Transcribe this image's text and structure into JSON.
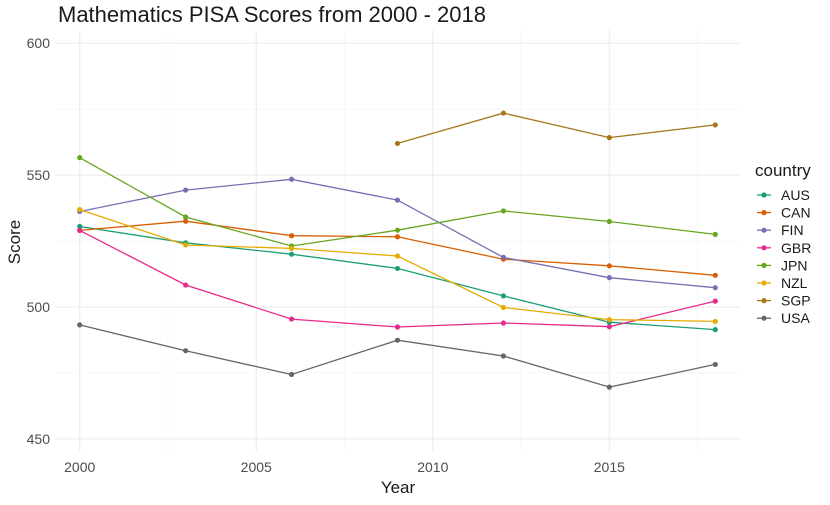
{
  "chart_data": {
    "type": "line",
    "title": "Mathematics PISA Scores from 2000 - 2018",
    "xlabel": "Year",
    "ylabel": "Score",
    "xlim": [
      1999.3,
      2018.7
    ],
    "ylim": [
      445,
      605
    ],
    "x_ticks": [
      2000,
      2005,
      2010,
      2015
    ],
    "y_ticks": [
      450,
      500,
      550,
      600
    ],
    "grid": true,
    "legend": {
      "title": "country",
      "position": "right"
    },
    "series": [
      {
        "name": "AUS",
        "color": "#1b9e77",
        "points": [
          [
            2000,
            530.5
          ],
          [
            2003,
            524.3
          ],
          [
            2006,
            520.0
          ],
          [
            2009,
            514.6
          ],
          [
            2012,
            504.2
          ],
          [
            2015,
            494.2
          ],
          [
            2018,
            491.4
          ]
        ]
      },
      {
        "name": "CAN",
        "color": "#d95f02",
        "points": [
          [
            2000,
            529.0
          ],
          [
            2003,
            532.5
          ],
          [
            2006,
            527.0
          ],
          [
            2009,
            526.6
          ],
          [
            2012,
            518.1
          ],
          [
            2015,
            515.6
          ],
          [
            2018,
            512.0
          ]
        ]
      },
      {
        "name": "FIN",
        "color": "#7570b3",
        "points": [
          [
            2000,
            536.2
          ],
          [
            2003,
            544.3
          ],
          [
            2006,
            548.4
          ],
          [
            2009,
            540.5
          ],
          [
            2012,
            518.8
          ],
          [
            2015,
            511.1
          ],
          [
            2018,
            507.3
          ]
        ]
      },
      {
        "name": "GBR",
        "color": "#e7298a",
        "points": [
          [
            2000,
            529.0
          ],
          [
            2003,
            508.3
          ],
          [
            2006,
            495.4
          ],
          [
            2009,
            492.4
          ],
          [
            2012,
            493.9
          ],
          [
            2015,
            492.5
          ],
          [
            2018,
            502.2
          ]
        ]
      },
      {
        "name": "JPN",
        "color": "#66a61e",
        "points": [
          [
            2000,
            556.6
          ],
          [
            2003,
            534.1
          ],
          [
            2006,
            523.1
          ],
          [
            2009,
            529.1
          ],
          [
            2012,
            536.4
          ],
          [
            2015,
            532.4
          ],
          [
            2018,
            527.5
          ]
        ]
      },
      {
        "name": "NZL",
        "color": "#e6ab02",
        "points": [
          [
            2000,
            536.9
          ],
          [
            2003,
            523.5
          ],
          [
            2006,
            522.2
          ],
          [
            2009,
            519.3
          ],
          [
            2012,
            499.8
          ],
          [
            2015,
            495.2
          ],
          [
            2018,
            494.5
          ]
        ]
      },
      {
        "name": "SGP",
        "color": "#a6761d",
        "points": [
          [
            2009,
            562.0
          ],
          [
            2012,
            573.5
          ],
          [
            2015,
            564.2
          ],
          [
            2018,
            569.0
          ]
        ]
      },
      {
        "name": "USA",
        "color": "#666666",
        "points": [
          [
            2000,
            493.2
          ],
          [
            2003,
            483.4
          ],
          [
            2006,
            474.4
          ],
          [
            2009,
            487.4
          ],
          [
            2012,
            481.4
          ],
          [
            2015,
            469.6
          ],
          [
            2018,
            478.2
          ]
        ]
      }
    ]
  }
}
